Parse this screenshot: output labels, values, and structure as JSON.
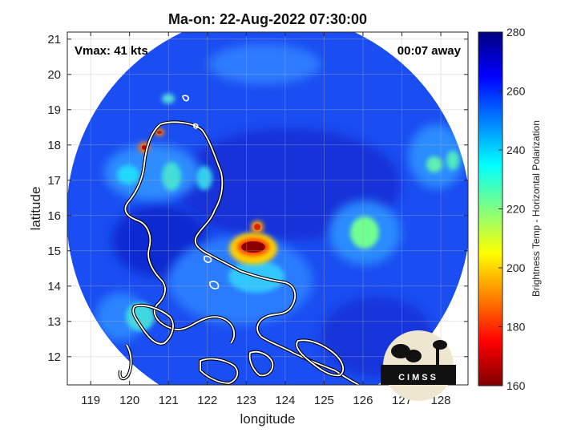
{
  "chart_data": {
    "type": "heatmap",
    "title": "Ma-on: 22-Aug-2022 07:30:00",
    "xlabel": "longitude",
    "ylabel": "latitude",
    "xlim": [
      118.4,
      128.7
    ],
    "ylim": [
      11.2,
      21.2
    ],
    "x_ticks": [
      119,
      120,
      121,
      122,
      123,
      124,
      125,
      126,
      127,
      128
    ],
    "y_ticks": [
      12,
      13,
      14,
      15,
      16,
      17,
      18,
      19,
      20,
      21
    ],
    "grid": true,
    "swath_center": [
      123.55,
      16.3
    ],
    "annotations": {
      "left": "Vmax: 41 kts",
      "right": "00:07 away"
    },
    "colorbar": {
      "label": "Brightness Temp - Horizontal Polarization",
      "min": 160,
      "max": 280,
      "ticks": [
        160,
        180,
        200,
        220,
        240,
        260,
        280
      ],
      "colormap": "jet",
      "colors": [
        "#7f0000",
        "#ff0000",
        "#ff8000",
        "#ffff00",
        "#80ff80",
        "#00ffff",
        "#0080ff",
        "#0000ff",
        "#00007f"
      ]
    },
    "background_value": 262,
    "features": [
      {
        "name": "eye",
        "lon": 123.15,
        "lat": 15.0,
        "value": 168
      },
      {
        "name": "eyewall",
        "lon": 123.15,
        "lat": 15.0,
        "value": 198
      },
      {
        "name": "north cell",
        "lon": 123.3,
        "lat": 15.8,
        "value": 200
      },
      {
        "name": "west convection",
        "lon": 120.3,
        "lat": 17.9,
        "value": 178
      },
      {
        "name": "northwest cell",
        "lon": 120.7,
        "lat": 18.4,
        "value": 185
      },
      {
        "name": "east convection",
        "lon": 126.1,
        "lat": 15.5,
        "value": 212
      },
      {
        "name": "far east cell",
        "lon": 127.6,
        "lat": 17.2,
        "value": 225
      }
    ],
    "logo": "CIMSS"
  }
}
